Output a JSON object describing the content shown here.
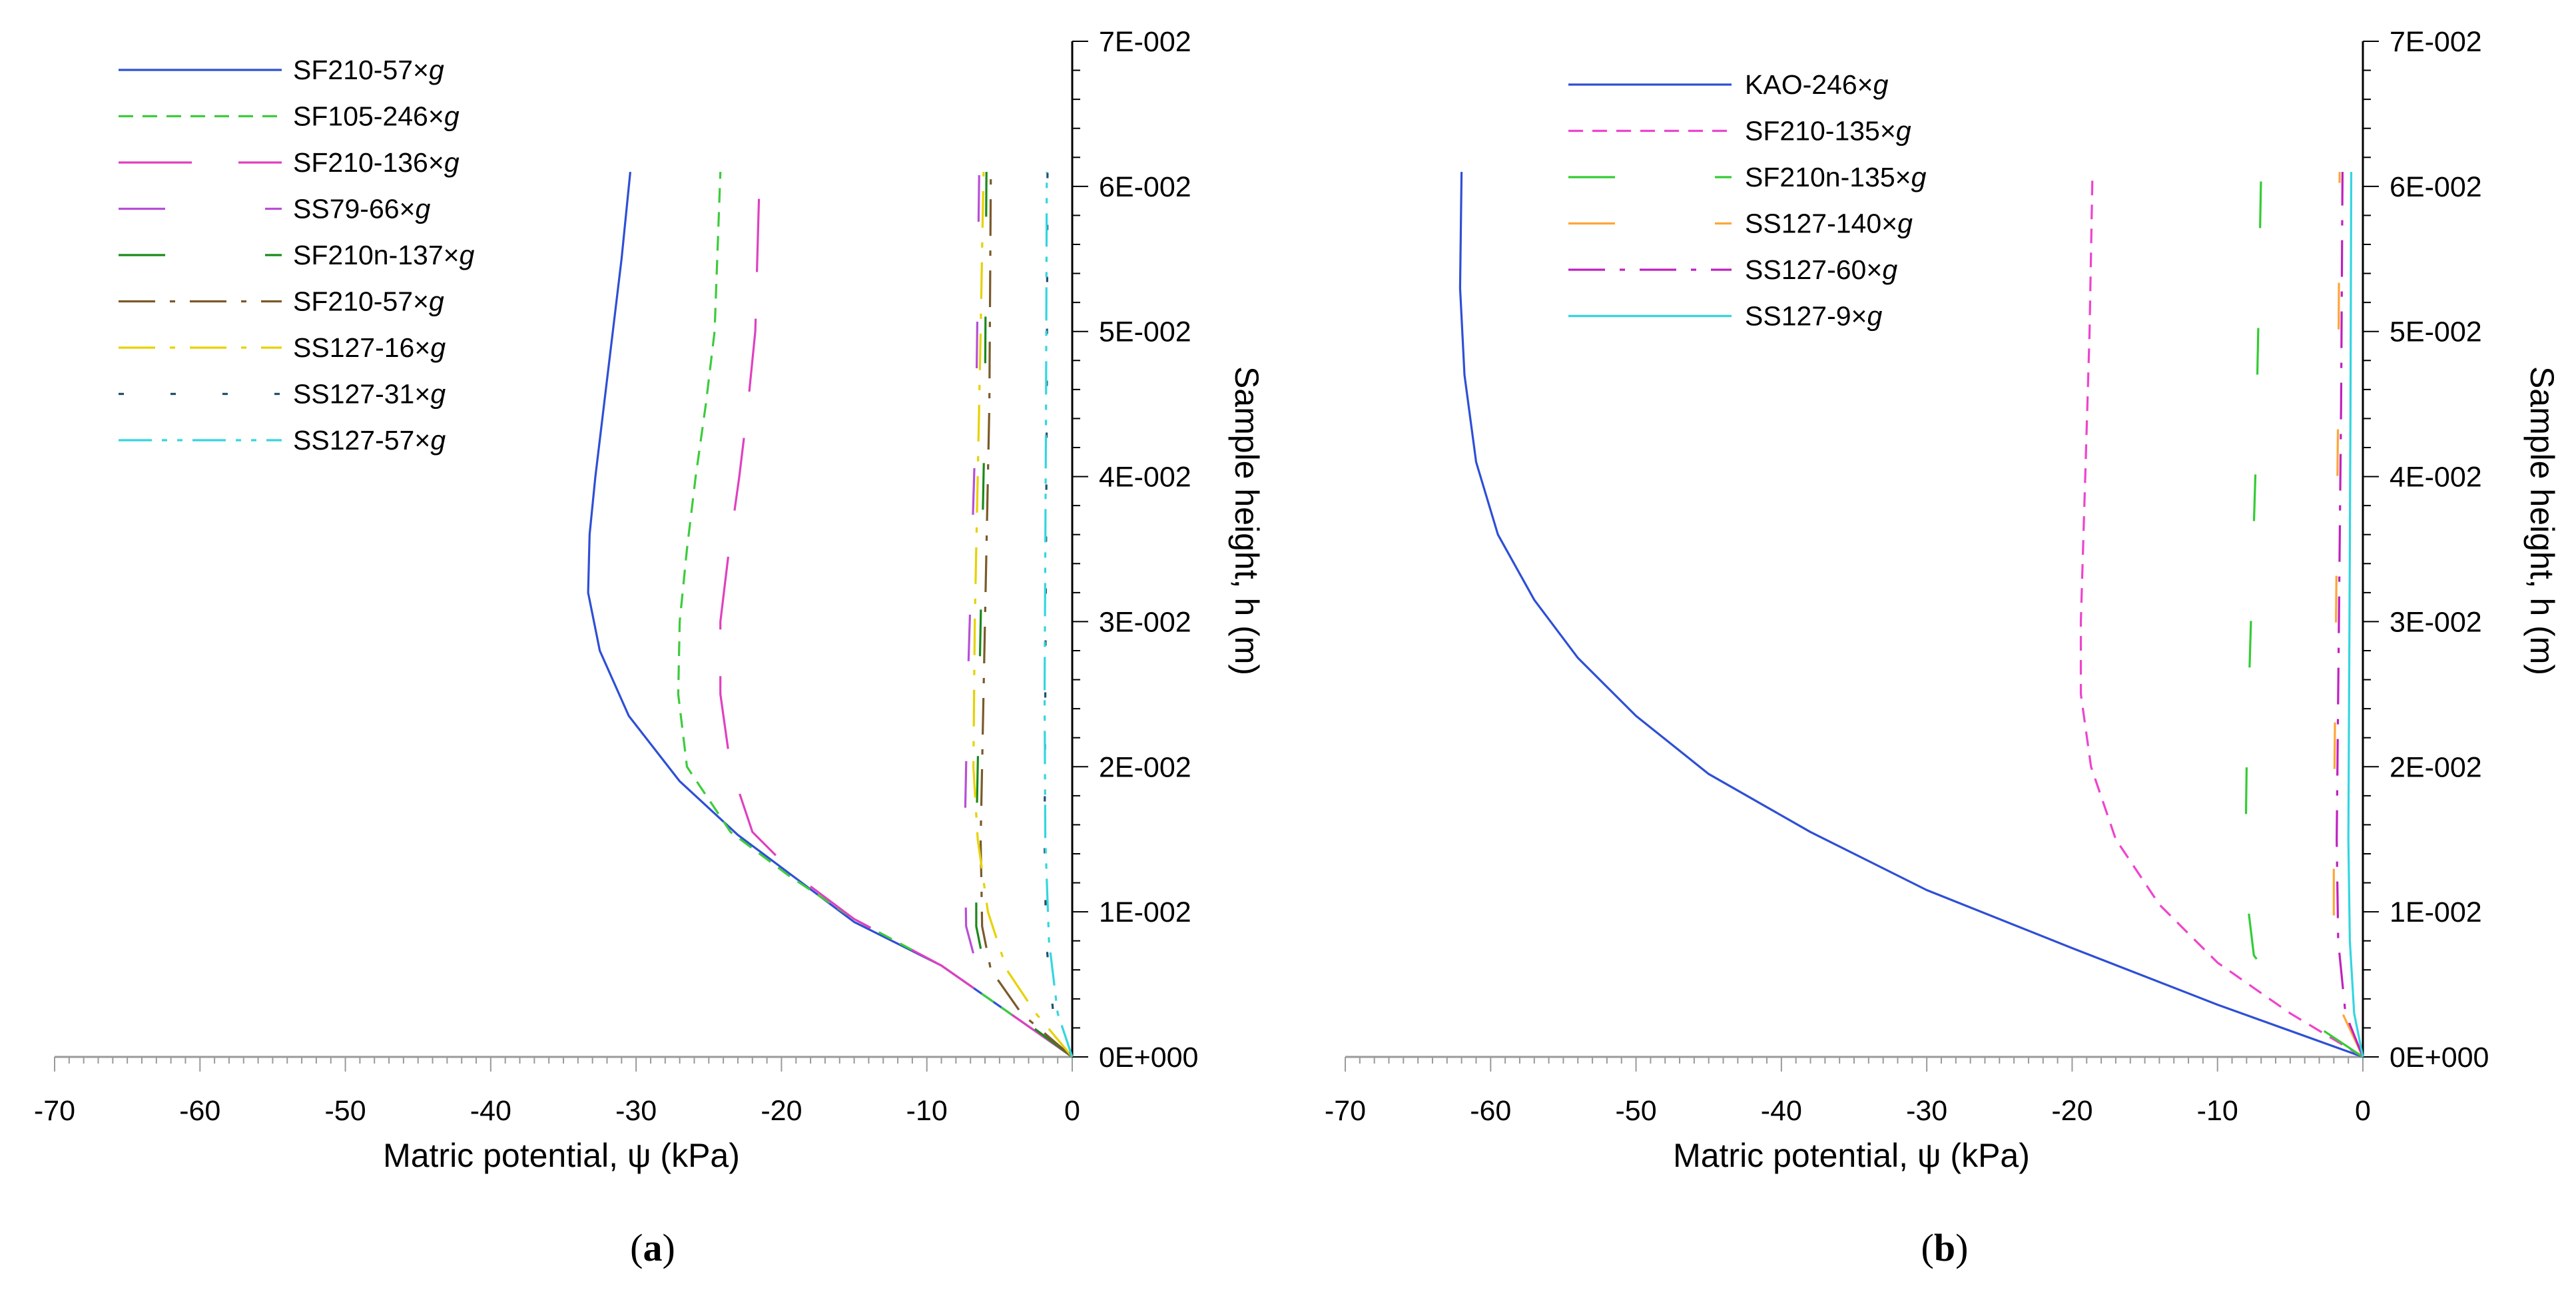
{
  "chart_data": [
    {
      "type": "line",
      "panel_label": "a",
      "xlabel": "Matric potential, ψ (kPa)",
      "ylabel": "Sample height, h (m)",
      "xlim": [
        -70,
        0
      ],
      "ylim": [
        0,
        0.07
      ],
      "xticks": [
        "-70",
        "-60",
        "-50",
        "-40",
        "-30",
        "-20",
        "-10",
        "0"
      ],
      "yticks": [
        "0E+000",
        "1E-002",
        "2E-002",
        "3E-002",
        "4E-002",
        "5E-002",
        "6E-002",
        "7E-002"
      ],
      "legend_position": "top-left",
      "series": [
        {
          "name": "SF210-57×g",
          "color": "#2e4fd6",
          "dash": "solid",
          "x": [
            0,
            -9,
            -15,
            -19,
            -23,
            -27,
            -30.5,
            -32.5,
            -33.3,
            -33.2,
            -32.8,
            -32.2,
            -31.6,
            -31,
            -30.4
          ],
          "y": [
            0,
            0.0063,
            0.0093,
            0.0123,
            0.0153,
            0.019,
            0.0235,
            0.028,
            0.032,
            0.036,
            0.04,
            0.045,
            0.05,
            0.055,
            0.061
          ]
        },
        {
          "name": "SF105-246×g",
          "color": "#3ccc3c",
          "dash": "short",
          "x": [
            0,
            -9,
            -15,
            -19.5,
            -23.5,
            -26.5,
            -27.1,
            -27,
            -26.5,
            -25.9,
            -25.2,
            -24.6,
            -24.2
          ],
          "y": [
            0,
            0.0063,
            0.0095,
            0.0125,
            0.0155,
            0.02,
            0.025,
            0.03,
            0.035,
            0.04,
            0.045,
            0.05,
            0.061
          ]
        },
        {
          "name": "SF210-136×g",
          "color": "#e040c0",
          "dash": "long",
          "x": [
            0,
            -9,
            -15,
            -19,
            -22,
            -23.5,
            -24.2,
            -24.2,
            -23.6,
            -22.9,
            -22.3,
            -21.8,
            -21.5
          ],
          "y": [
            0,
            0.0063,
            0.0095,
            0.0125,
            0.0155,
            0.02,
            0.025,
            0.03,
            0.035,
            0.04,
            0.045,
            0.05,
            0.061
          ]
        },
        {
          "name": "SS79-66×g",
          "color": "#b84fd6",
          "dash": "longgap",
          "x": [
            0,
            -4,
            -6.5,
            -7.3,
            -7.4,
            -7.2,
            -6.9,
            -6.6,
            -6.4
          ],
          "y": [
            0,
            0.003,
            0.006,
            0.009,
            0.015,
            0.025,
            0.035,
            0.045,
            0.061
          ]
        },
        {
          "name": "SF210n-137×g",
          "color": "#1a8a1a",
          "dash": "longgap",
          "x": [
            0,
            -4,
            -6,
            -6.6,
            -6.6,
            -6.4,
            -6.2,
            -6,
            -5.9
          ],
          "y": [
            0,
            0.003,
            0.006,
            0.009,
            0.015,
            0.025,
            0.035,
            0.045,
            0.061
          ]
        },
        {
          "name": "SF210-57×g",
          "color": "#7a5a2a",
          "dash": "dashdot",
          "x": [
            0,
            -3.5,
            -5.6,
            -6.2,
            -6.3,
            -6.1,
            -5.9,
            -5.7,
            -5.6
          ],
          "y": [
            0,
            0.003,
            0.006,
            0.009,
            0.015,
            0.025,
            0.035,
            0.045,
            0.061
          ]
        },
        {
          "name": "SS127-16×g",
          "color": "#e6d200",
          "dash": "dashdot",
          "x": [
            0,
            -2.5,
            -4.5,
            -5.8,
            -6.5,
            -6.8,
            -6.7,
            -6.5,
            -6.3,
            -6.1
          ],
          "y": [
            0,
            0.003,
            0.006,
            0.01,
            0.015,
            0.02,
            0.03,
            0.04,
            0.05,
            0.061
          ]
        },
        {
          "name": "SS127-31×g",
          "color": "#22516a",
          "dash": "dotsparse",
          "x": [
            0,
            -1.3,
            -1.8,
            -1.9,
            -1.85,
            -1.8,
            -1.75,
            -1.7
          ],
          "y": [
            0,
            0.003,
            0.008,
            0.015,
            0.025,
            0.035,
            0.045,
            0.061
          ]
        },
        {
          "name": "SS127-57×g",
          "color": "#33d6e0",
          "dash": "dashdotdot",
          "x": [
            0,
            -1,
            -1.6,
            -1.85,
            -1.9,
            -1.85,
            -1.8,
            -1.75
          ],
          "y": [
            0,
            0.003,
            0.008,
            0.015,
            0.025,
            0.035,
            0.045,
            0.061
          ]
        }
      ]
    },
    {
      "type": "line",
      "panel_label": "b",
      "xlabel": "Matric potential, ψ (kPa)",
      "ylabel": "Sample height, h (m)",
      "xlim": [
        -70,
        0
      ],
      "ylim": [
        0,
        0.07
      ],
      "xticks": [
        "-70",
        "-60",
        "-50",
        "-40",
        "-30",
        "-20",
        "-10",
        "0"
      ],
      "yticks": [
        "0E+000",
        "1E-002",
        "2E-002",
        "3E-002",
        "4E-002",
        "5E-002",
        "6E-002",
        "7E-002"
      ],
      "legend_position": "top-left",
      "series": [
        {
          "name": "KAO-246×g",
          "color": "#2e4fd6",
          "dash": "solid",
          "x": [
            0,
            -10,
            -20,
            -30,
            -38,
            -45,
            -50,
            -54,
            -57,
            -59.5,
            -61,
            -61.8,
            -62.1,
            -62
          ],
          "y": [
            0,
            0.0036,
            0.0075,
            0.0115,
            0.0155,
            0.0195,
            0.0235,
            0.0275,
            0.0315,
            0.036,
            0.041,
            0.047,
            0.053,
            0.061
          ]
        },
        {
          "name": "SF210-135×g",
          "color": "#ee44cc",
          "dash": "short",
          "x": [
            0,
            -5,
            -10,
            -14,
            -17,
            -18.7,
            -19.4,
            -19.4,
            -19.1,
            -18.8,
            -18.6
          ],
          "y": [
            0,
            0.003,
            0.0065,
            0.0105,
            0.015,
            0.02,
            0.025,
            0.03,
            0.04,
            0.05,
            0.061
          ]
        },
        {
          "name": "SF210n-135×g",
          "color": "#33cc33",
          "dash": "longgap",
          "x": [
            0,
            -4.5,
            -7.5,
            -8.1,
            -8,
            -7.7,
            -7.4,
            -7.2,
            -7
          ],
          "y": [
            0,
            0.003,
            0.007,
            0.012,
            0.02,
            0.03,
            0.04,
            0.05,
            0.061
          ]
        },
        {
          "name": "SS127-140×g",
          "color": "#ffa53a",
          "dash": "longgap",
          "x": [
            0,
            -1.4,
            -2,
            -2,
            -1.9,
            -1.8,
            -1.7,
            -1.6
          ],
          "y": [
            0,
            0.003,
            0.008,
            0.015,
            0.025,
            0.035,
            0.045,
            0.061
          ]
        },
        {
          "name": "SS127-60×g",
          "color": "#c020c0",
          "dash": "dashdot",
          "x": [
            0,
            -1.2,
            -1.7,
            -1.8,
            -1.7,
            -1.6,
            -1.5,
            -1.4
          ],
          "y": [
            0,
            0.003,
            0.008,
            0.015,
            0.025,
            0.035,
            0.045,
            0.061
          ]
        },
        {
          "name": "SS127-9×g",
          "color": "#33d6e0",
          "dash": "solid",
          "x": [
            0,
            -0.6,
            -0.9,
            -1,
            -0.95,
            -0.9,
            -0.85,
            -0.8
          ],
          "y": [
            0,
            0.003,
            0.008,
            0.015,
            0.025,
            0.035,
            0.045,
            0.061
          ]
        }
      ]
    }
  ]
}
